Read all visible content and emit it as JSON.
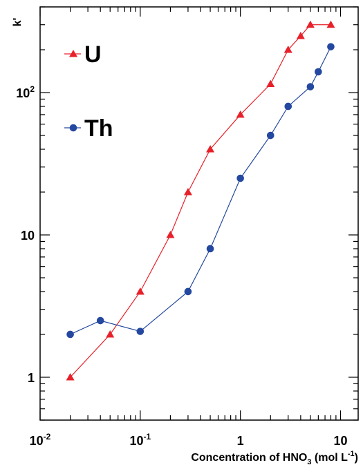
{
  "chart_data": {
    "type": "line",
    "x_scale": "log",
    "y_scale": "log",
    "xlim": [
      0.01,
      15
    ],
    "ylim": [
      0.5,
      400
    ],
    "grid": false,
    "legend_position": "top-left",
    "ylabel": "k'",
    "xlabel": {
      "prefix": "Concentration of HNO",
      "subscript": "3",
      "unit_open": " (mol L",
      "unit_sup": "-1",
      "unit_close": ")"
    },
    "x_ticks": [
      {
        "value": 0.01,
        "base": "10",
        "exp": "-2"
      },
      {
        "value": 0.1,
        "base": "10",
        "exp": "-1"
      },
      {
        "value": 1,
        "base": "1",
        "exp": ""
      },
      {
        "value": 10,
        "base": "10",
        "exp": ""
      }
    ],
    "y_ticks": [
      {
        "value": 1,
        "base": "1",
        "exp": ""
      },
      {
        "value": 10,
        "base": "10",
        "exp": ""
      },
      {
        "value": 100,
        "base": "10",
        "exp": "2"
      }
    ],
    "series": [
      {
        "name": "U",
        "color": "#e8202a",
        "marker": "triangle",
        "x": [
          0.02,
          0.05,
          0.1,
          0.2,
          0.3,
          0.5,
          1,
          2,
          3,
          4,
          5,
          8
        ],
        "y": [
          1.0,
          2.0,
          4.0,
          10.0,
          20.0,
          40.0,
          70.0,
          115.0,
          200.0,
          250.0,
          300.0,
          300.0
        ]
      },
      {
        "name": "Th",
        "color": "#2448a0",
        "marker": "circle",
        "x": [
          0.02,
          0.04,
          0.1,
          0.3,
          0.5,
          1,
          2,
          3,
          5,
          6,
          8
        ],
        "y": [
          2.0,
          2.5,
          2.1,
          4.0,
          8.0,
          25.0,
          50.0,
          80.0,
          110.0,
          140.0,
          210.0
        ]
      }
    ]
  }
}
